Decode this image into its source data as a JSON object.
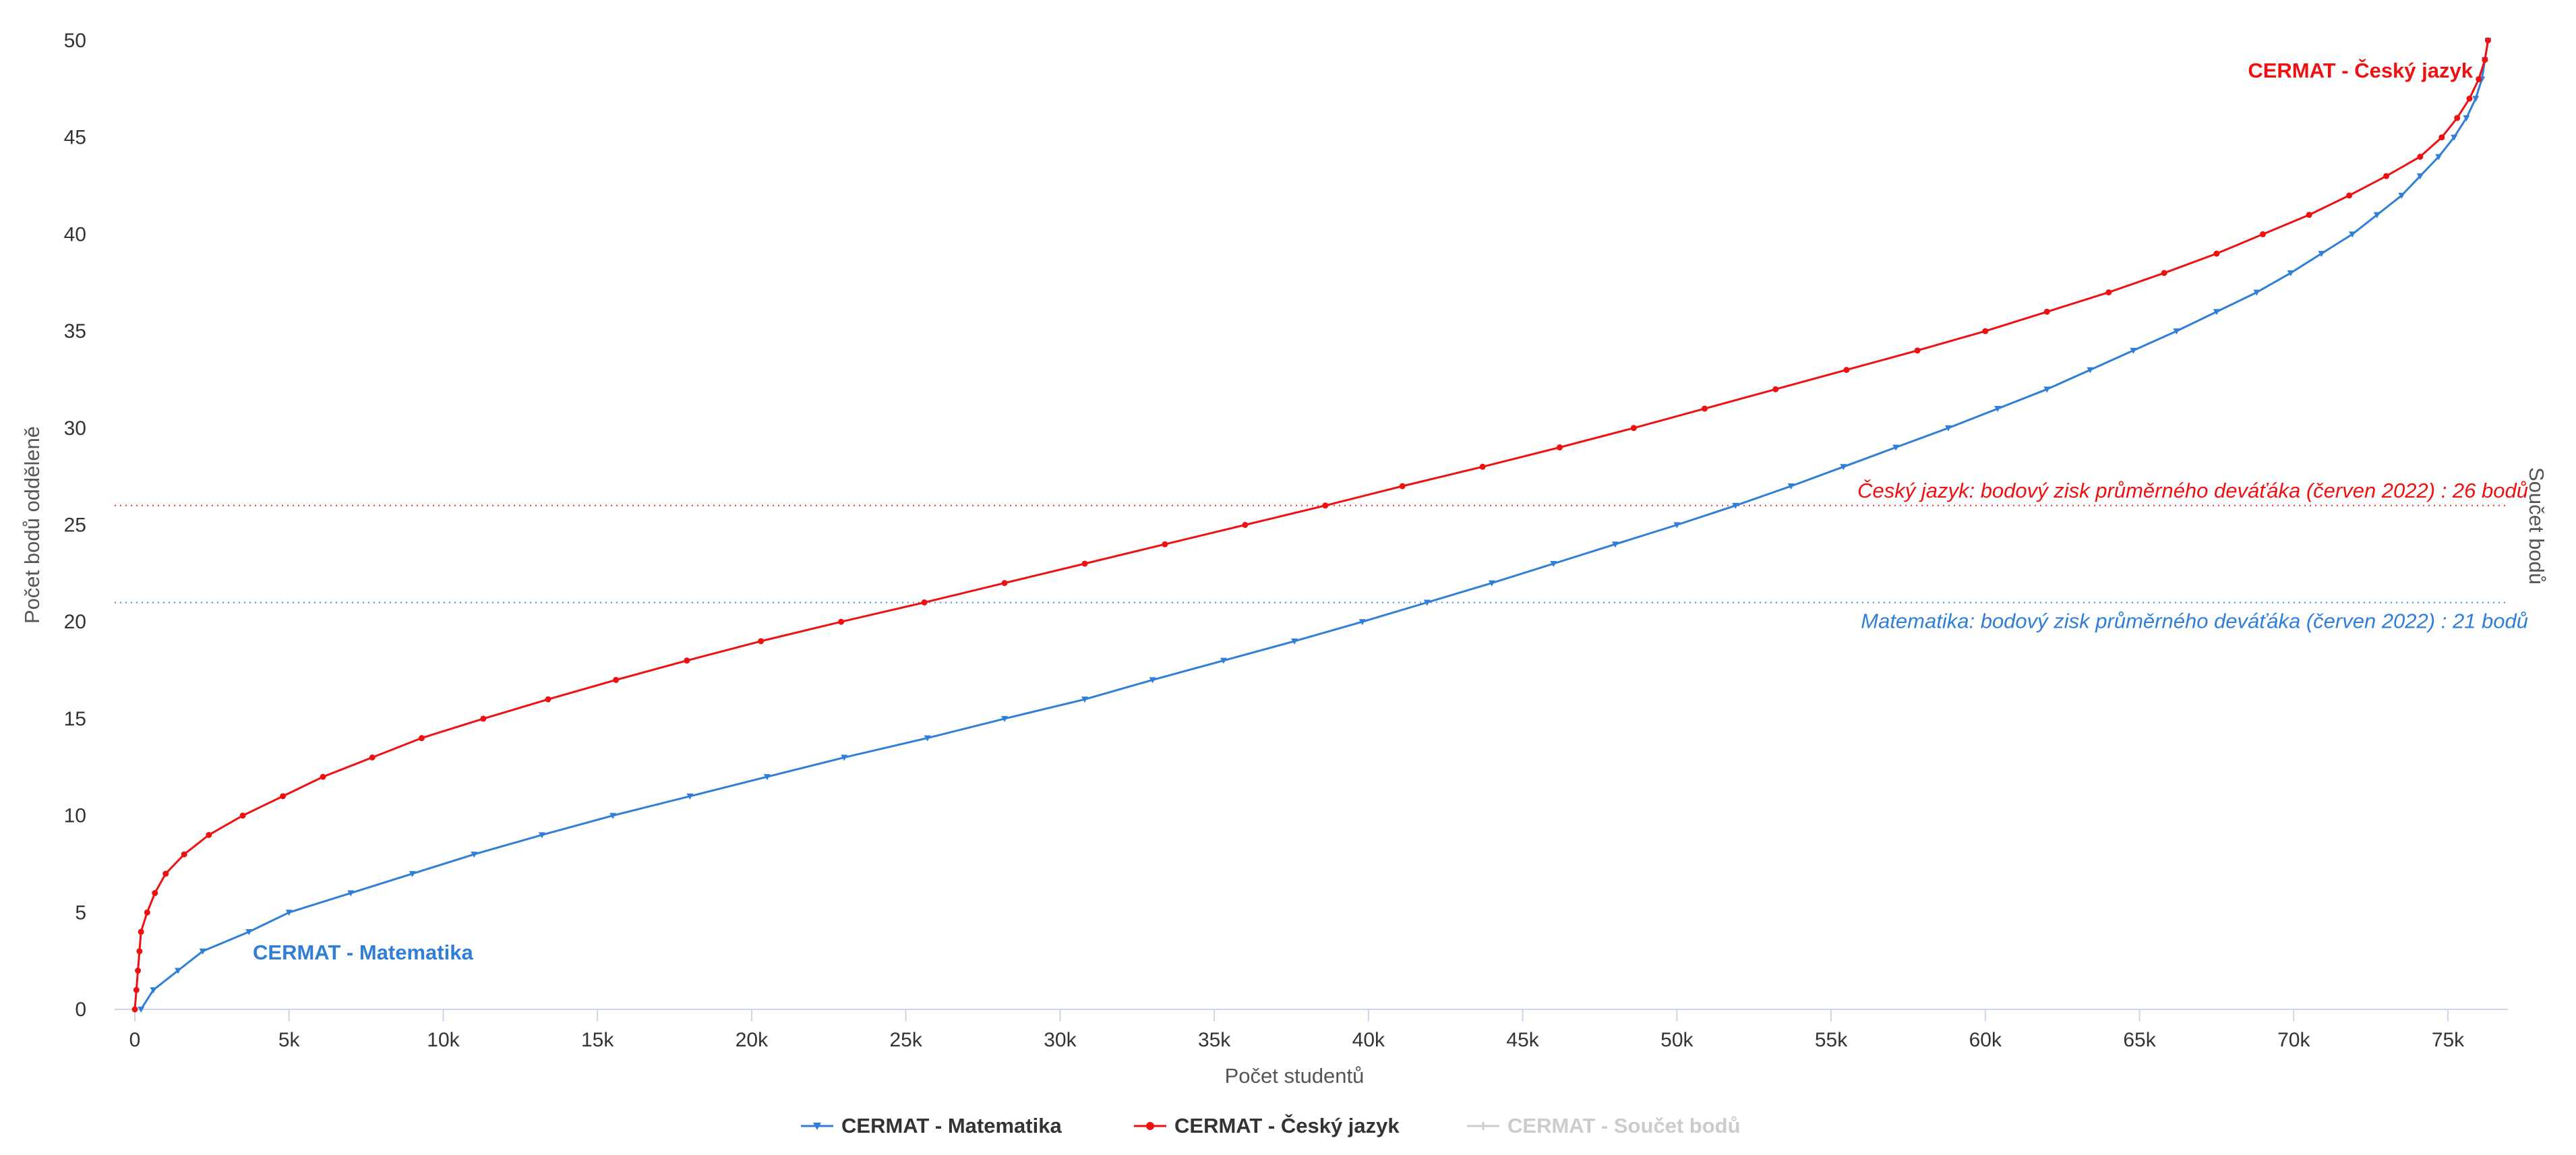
{
  "chart_data": {
    "type": "line",
    "xlabel": "Počet studentů",
    "ylabel": "Počet bodů odděleně",
    "y2label": "Součet bodů",
    "xlim": [
      0,
      77000
    ],
    "ylim": [
      0,
      50
    ],
    "x_ticks": [
      {
        "value": 0,
        "label": "0"
      },
      {
        "value": 5000,
        "label": "5k"
      },
      {
        "value": 10000,
        "label": "10k"
      },
      {
        "value": 15000,
        "label": "15k"
      },
      {
        "value": 20000,
        "label": "20k"
      },
      {
        "value": 25000,
        "label": "25k"
      },
      {
        "value": 30000,
        "label": "30k"
      },
      {
        "value": 35000,
        "label": "35k"
      },
      {
        "value": 40000,
        "label": "40k"
      },
      {
        "value": 45000,
        "label": "45k"
      },
      {
        "value": 50000,
        "label": "50k"
      },
      {
        "value": 55000,
        "label": "55k"
      },
      {
        "value": 60000,
        "label": "60k"
      },
      {
        "value": 65000,
        "label": "65k"
      },
      {
        "value": 70000,
        "label": "70k"
      },
      {
        "value": 75000,
        "label": "75k"
      }
    ],
    "y_ticks": [
      {
        "value": 0,
        "label": "0"
      },
      {
        "value": 5,
        "label": "5"
      },
      {
        "value": 10,
        "label": "10"
      },
      {
        "value": 15,
        "label": "15"
      },
      {
        "value": 20,
        "label": "20"
      },
      {
        "value": 25,
        "label": "25"
      },
      {
        "value": 30,
        "label": "30"
      },
      {
        "value": 35,
        "label": "35"
      },
      {
        "value": 40,
        "label": "40"
      },
      {
        "value": 45,
        "label": "45"
      },
      {
        "value": 50,
        "label": "50"
      }
    ],
    "grid": false,
    "legend_position": "bottom",
    "series": [
      {
        "name": "CERMAT - Matematika",
        "color": "#2f7ed8",
        "visible": true,
        "points": [
          [
            200,
            0
          ],
          [
            600,
            1
          ],
          [
            1400,
            2
          ],
          [
            2200,
            3
          ],
          [
            3700,
            4
          ],
          [
            5000,
            5
          ],
          [
            7000,
            6
          ],
          [
            9000,
            7
          ],
          [
            11000,
            8
          ],
          [
            13200,
            9
          ],
          [
            15500,
            10
          ],
          [
            18000,
            11
          ],
          [
            20500,
            12
          ],
          [
            23000,
            13
          ],
          [
            25700,
            14
          ],
          [
            28200,
            15
          ],
          [
            30800,
            16
          ],
          [
            33000,
            17
          ],
          [
            35300,
            18
          ],
          [
            37600,
            19
          ],
          [
            39800,
            20
          ],
          [
            41900,
            21
          ],
          [
            44000,
            22
          ],
          [
            46000,
            23
          ],
          [
            48000,
            24
          ],
          [
            50000,
            25
          ],
          [
            51900,
            26
          ],
          [
            53700,
            27
          ],
          [
            55400,
            28
          ],
          [
            57100,
            29
          ],
          [
            58800,
            30
          ],
          [
            60400,
            31
          ],
          [
            62000,
            32
          ],
          [
            63400,
            33
          ],
          [
            64800,
            34
          ],
          [
            66200,
            35
          ],
          [
            67500,
            36
          ],
          [
            68800,
            37
          ],
          [
            69900,
            38
          ],
          [
            70900,
            39
          ],
          [
            71900,
            40
          ],
          [
            72700,
            41
          ],
          [
            73500,
            42
          ],
          [
            74100,
            43
          ],
          [
            74700,
            44
          ],
          [
            75200,
            45
          ],
          [
            75600,
            46
          ],
          [
            75900,
            47
          ],
          [
            76100,
            48
          ],
          [
            76200,
            49
          ],
          [
            76300,
            50
          ]
        ]
      },
      {
        "name": "CERMAT - Český jazyk",
        "color": "#ee1111",
        "visible": true,
        "points": [
          [
            0,
            0
          ],
          [
            50,
            1
          ],
          [
            100,
            2
          ],
          [
            150,
            3
          ],
          [
            200,
            4
          ],
          [
            400,
            5
          ],
          [
            650,
            6
          ],
          [
            1000,
            7
          ],
          [
            1600,
            8
          ],
          [
            2400,
            9
          ],
          [
            3500,
            10
          ],
          [
            4800,
            11
          ],
          [
            6100,
            12
          ],
          [
            7700,
            13
          ],
          [
            9300,
            14
          ],
          [
            11300,
            15
          ],
          [
            13400,
            16
          ],
          [
            15600,
            17
          ],
          [
            17900,
            18
          ],
          [
            20300,
            19
          ],
          [
            22900,
            20
          ],
          [
            25600,
            21
          ],
          [
            28200,
            22
          ],
          [
            30800,
            23
          ],
          [
            33400,
            24
          ],
          [
            36000,
            25
          ],
          [
            38600,
            26
          ],
          [
            41100,
            27
          ],
          [
            43700,
            28
          ],
          [
            46200,
            29
          ],
          [
            48600,
            30
          ],
          [
            50900,
            31
          ],
          [
            53200,
            32
          ],
          [
            55500,
            33
          ],
          [
            57800,
            34
          ],
          [
            60000,
            35
          ],
          [
            62000,
            36
          ],
          [
            64000,
            37
          ],
          [
            65800,
            38
          ],
          [
            67500,
            39
          ],
          [
            69000,
            40
          ],
          [
            70500,
            41
          ],
          [
            71800,
            42
          ],
          [
            73000,
            43
          ],
          [
            74100,
            44
          ],
          [
            74800,
            45
          ],
          [
            75300,
            46
          ],
          [
            75700,
            47
          ],
          [
            76000,
            48
          ],
          [
            76200,
            49
          ],
          [
            76300,
            50
          ]
        ]
      },
      {
        "name": "CERMAT - Součet bodů",
        "color": "#cccccc",
        "visible": false,
        "points": []
      }
    ],
    "series_labels": [
      {
        "text": "CERMAT - Matematika",
        "color": "#2f7ed8"
      },
      {
        "text": "CERMAT - Český jazyk",
        "color": "#ee1111"
      }
    ],
    "plot_lines": [
      {
        "value": 26,
        "color": "#ee1111",
        "label": "Český jazyk: bodový zisk průměrného deváťáka (červen 2022) : 26 bodů"
      },
      {
        "value": 21,
        "color": "#2f7ed8",
        "label": "Matematika: bodový zisk průměrného deváťáka (červen 2022) : 21 bodů"
      }
    ]
  }
}
